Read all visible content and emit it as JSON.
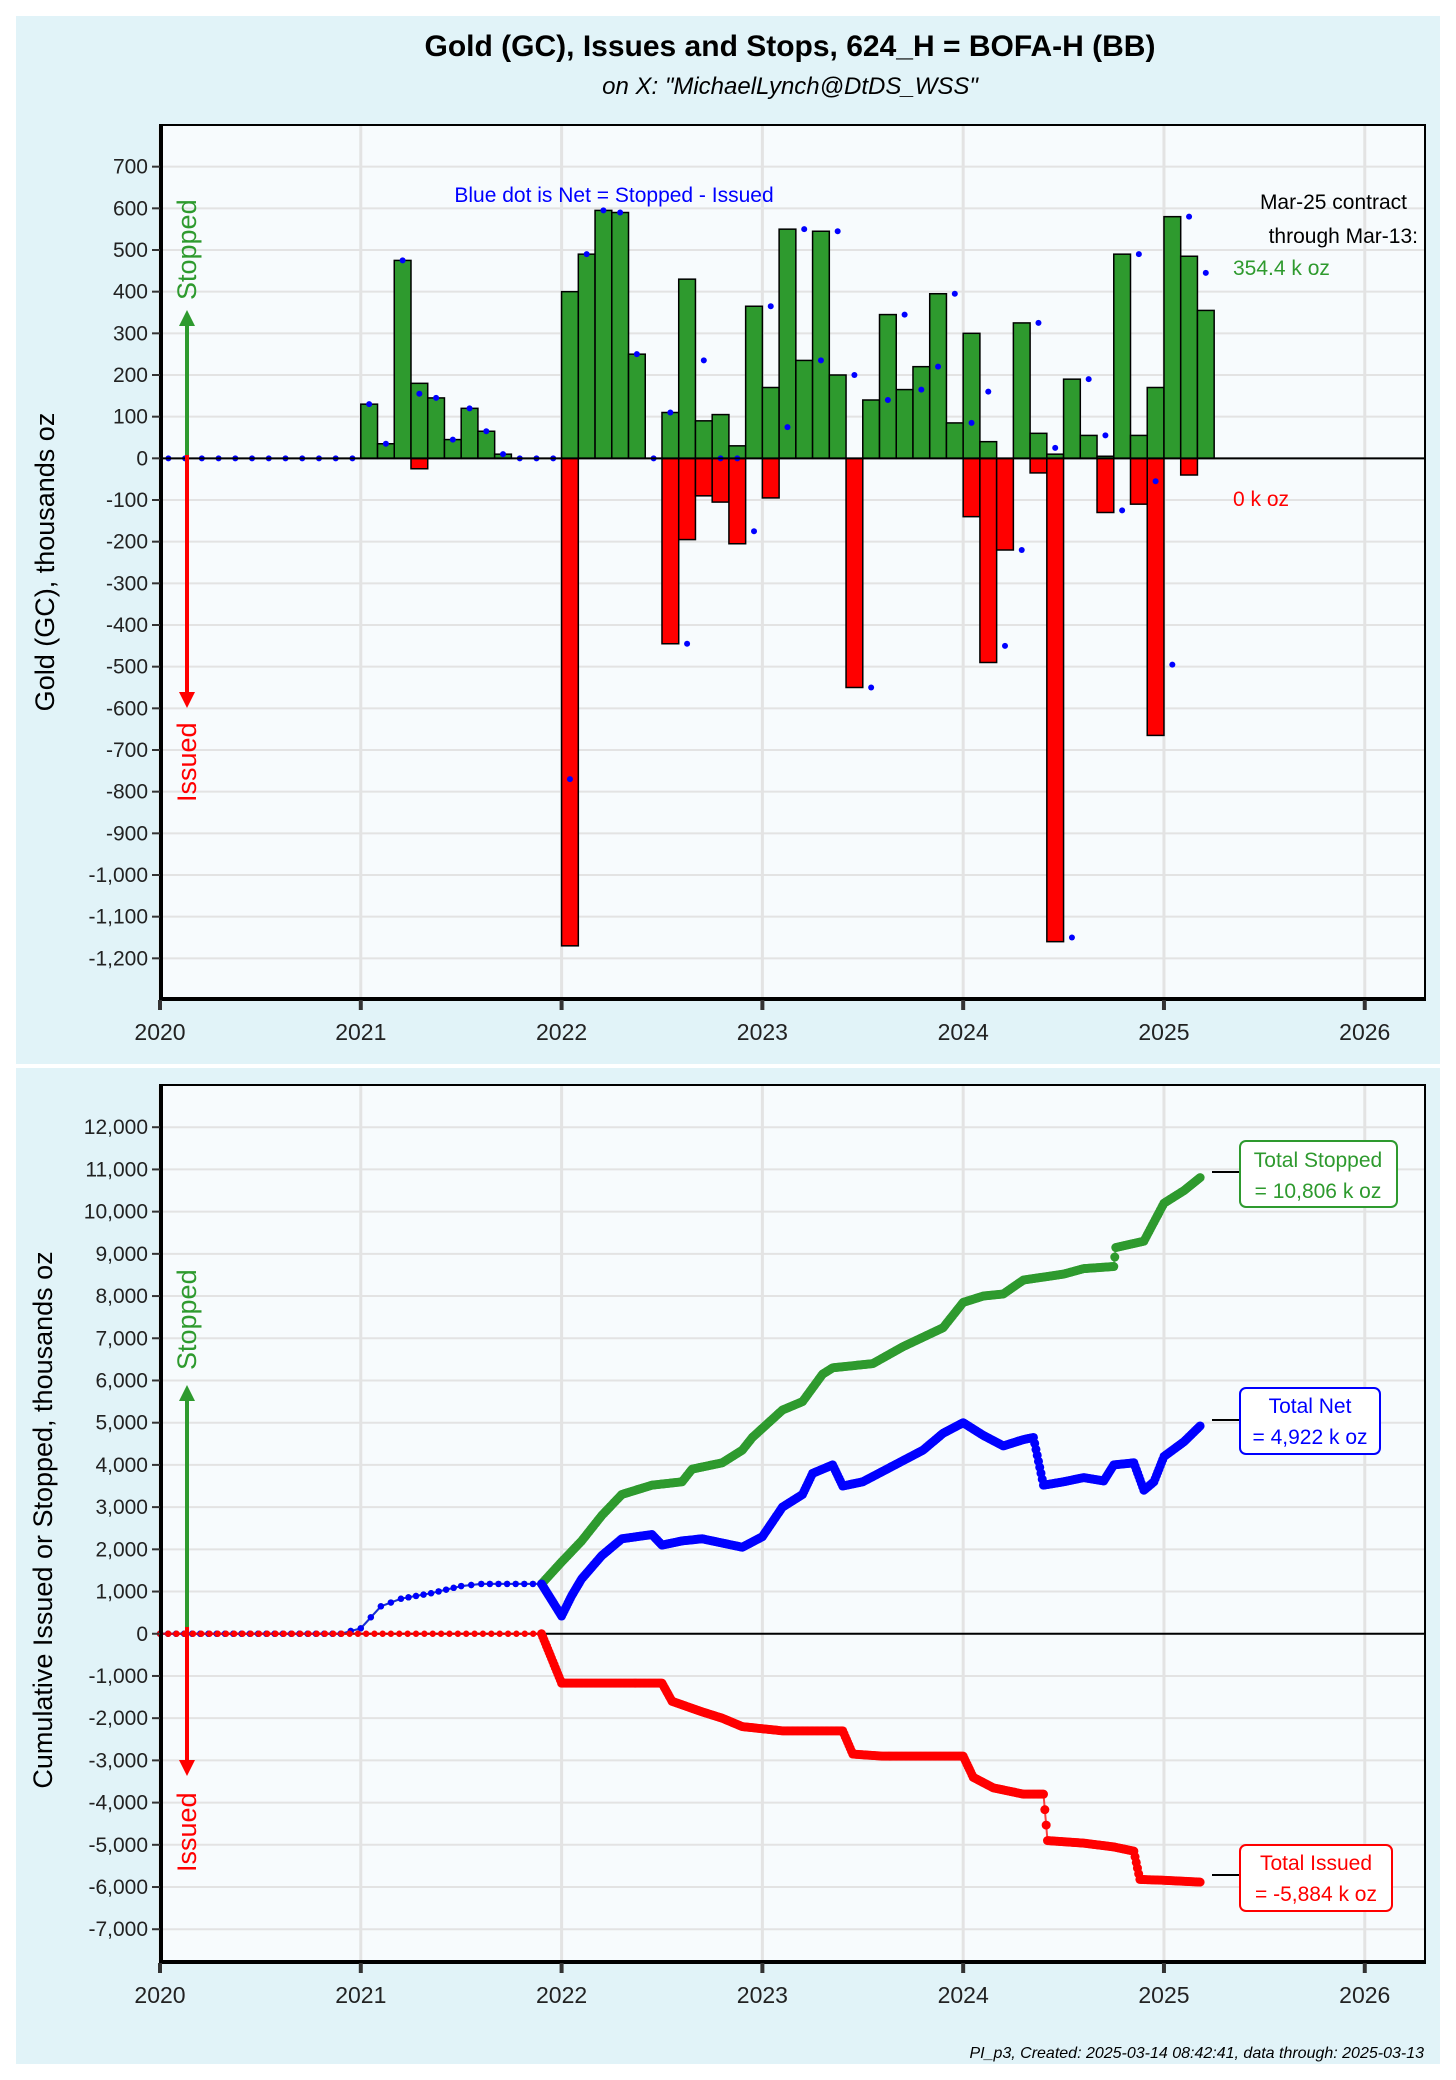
{
  "header": {
    "title": "Gold (GC), Issues and Stops, 624_H = BOFA-H (BB)",
    "subtitle": "on X:   \"MichaelLynch@DtDS_WSS\""
  },
  "footer": "PI_p3, Created: 2025-03-14 08:42:41, data through: 2025-03-13",
  "colors": {
    "panel_bg": "#e1f3f8",
    "plot_bg": "#f7fbfd",
    "stopped": "#2e9a2e",
    "issued": "#ff0000",
    "net": "#0000ff",
    "grid": "#e3e3e3"
  },
  "chart_data": [
    {
      "type": "bar",
      "title": "",
      "ylabel": "Gold (GC), thousands oz",
      "xlabel": "",
      "ylim": [
        -1300,
        800
      ],
      "xlim": [
        2020.0,
        2026.3
      ],
      "yticks": [
        700,
        600,
        500,
        400,
        300,
        200,
        100,
        0,
        -100,
        -200,
        -300,
        -400,
        -500,
        -600,
        -700,
        -800,
        -900,
        -1000,
        -1100,
        -1200
      ],
      "ytick_labels": [
        "700",
        "600",
        "500",
        "400",
        "300",
        "200",
        "100",
        "0",
        "-100",
        "-200",
        "-300",
        "-400",
        "-500",
        "-600",
        "-700",
        "-800",
        "-900",
        "-1,000",
        "-1,100",
        "-1,200"
      ],
      "xticks": [
        2020,
        2021,
        2022,
        2023,
        2024,
        2025,
        2026
      ],
      "xtick_labels": [
        "2020",
        "2021",
        "2022",
        "2023",
        "2024",
        "2025",
        "2026"
      ],
      "grid": true,
      "arrow_labels": {
        "up": "Stopped",
        "down": "Issued"
      },
      "annotations": {
        "net_note": "Blue dot is Net = Stopped - Issued",
        "contract_line1": "Mar-25 contract",
        "contract_line2": "through Mar-13:",
        "stopped_value": "354.4 k oz",
        "issued_value": "0 k oz"
      },
      "months": [
        "2020-01",
        "2020-02",
        "2020-03",
        "2020-04",
        "2020-05",
        "2020-06",
        "2020-07",
        "2020-08",
        "2020-09",
        "2020-10",
        "2020-11",
        "2020-12",
        "2021-01",
        "2021-02",
        "2021-03",
        "2021-04",
        "2021-05",
        "2021-06",
        "2021-07",
        "2021-08",
        "2021-09",
        "2021-10",
        "2021-11",
        "2021-12",
        "2022-01",
        "2022-02",
        "2022-03",
        "2022-04",
        "2022-05",
        "2022-06",
        "2022-07",
        "2022-08",
        "2022-09",
        "2022-10",
        "2022-11",
        "2022-12",
        "2023-01",
        "2023-02",
        "2023-03",
        "2023-04",
        "2023-05",
        "2023-06",
        "2023-07",
        "2023-08",
        "2023-09",
        "2023-10",
        "2023-11",
        "2023-12",
        "2024-01",
        "2024-02",
        "2024-03",
        "2024-04",
        "2024-05",
        "2024-06",
        "2024-07",
        "2024-08",
        "2024-09",
        "2024-10",
        "2024-11",
        "2024-12",
        "2025-01",
        "2025-02",
        "2025-03"
      ],
      "series": [
        {
          "name": "Stopped",
          "values": [
            0,
            0,
            0,
            0,
            0,
            0,
            0,
            0,
            0,
            0,
            0,
            0,
            130,
            35,
            475,
            180,
            145,
            45,
            120,
            65,
            10,
            0,
            0,
            0,
            400,
            490,
            595,
            590,
            250,
            0,
            110,
            430,
            90,
            105,
            30,
            365,
            170,
            550,
            235,
            545,
            200,
            0,
            140,
            345,
            165,
            220,
            395,
            85,
            300,
            40,
            0,
            325,
            60,
            10,
            190,
            55,
            5,
            490,
            55,
            170,
            580,
            485,
            355
          ]
        },
        {
          "name": "Issued",
          "values": [
            0,
            0,
            0,
            0,
            0,
            0,
            0,
            0,
            0,
            0,
            0,
            0,
            0,
            0,
            0,
            -25,
            0,
            0,
            0,
            0,
            0,
            0,
            0,
            0,
            -1170,
            0,
            0,
            0,
            0,
            0,
            -445,
            -195,
            -90,
            -105,
            -205,
            0,
            -95,
            0,
            0,
            0,
            0,
            -550,
            0,
            0,
            0,
            0,
            0,
            0,
            -140,
            -490,
            -220,
            0,
            -35,
            -1160,
            0,
            0,
            -130,
            0,
            -110,
            -665,
            0,
            -40,
            0
          ]
        },
        {
          "name": "Net",
          "values": [
            0,
            0,
            0,
            0,
            0,
            0,
            0,
            0,
            0,
            0,
            0,
            0,
            130,
            35,
            475,
            155,
            145,
            45,
            120,
            65,
            10,
            0,
            0,
            0,
            -770,
            490,
            595,
            590,
            250,
            0,
            110,
            -445,
            235,
            0,
            0,
            -175,
            365,
            75,
            550,
            235,
            545,
            200,
            -550,
            140,
            345,
            165,
            220,
            395,
            85,
            160,
            -450,
            -220,
            325,
            25,
            -1150,
            190,
            55,
            -125,
            490,
            -55,
            -495,
            580,
            445
          ]
        }
      ]
    },
    {
      "type": "line",
      "title": "",
      "ylabel": "Cumulative Issued or Stopped, thousands oz",
      "xlabel": "",
      "ylim": [
        -7800,
        13000
      ],
      "xlim": [
        2020.0,
        2026.3
      ],
      "yticks": [
        12000,
        11000,
        10000,
        9000,
        8000,
        7000,
        6000,
        5000,
        4000,
        3000,
        2000,
        1000,
        0,
        -1000,
        -2000,
        -3000,
        -4000,
        -5000,
        -6000,
        -7000
      ],
      "ytick_labels": [
        "12,000",
        "11,000",
        "10,000",
        "9,000",
        "8,000",
        "7,000",
        "6,000",
        "5,000",
        "4,000",
        "3,000",
        "2,000",
        "1,000",
        "0",
        "-1,000",
        "-2,000",
        "-3,000",
        "-4,000",
        "-5,000",
        "-6,000",
        "-7,000"
      ],
      "xticks": [
        2020,
        2021,
        2022,
        2023,
        2024,
        2025,
        2026
      ],
      "xtick_labels": [
        "2020",
        "2021",
        "2022",
        "2023",
        "2024",
        "2025",
        "2026"
      ],
      "grid": true,
      "arrow_labels": {
        "up": "Stopped",
        "down": "Issued"
      },
      "labels": {
        "stopped_line1": "Total Stopped",
        "stopped_line2": "= 10,806 k oz",
        "net_line1": "Total Net",
        "net_line2": "= 4,922 k oz",
        "issued_line1": "Total Issued",
        "issued_line2": "= -5,884 k oz"
      },
      "series": [
        {
          "name": "Stopped",
          "points": [
            [
              2020.0,
              0
            ],
            [
              2020.2,
              0
            ],
            [
              2020.9,
              0
            ],
            [
              2021.0,
              130
            ],
            [
              2021.1,
              650
            ],
            [
              2021.2,
              830
            ],
            [
              2021.35,
              960
            ],
            [
              2021.5,
              1130
            ],
            [
              2021.6,
              1180
            ],
            [
              2021.9,
              1180
            ],
            [
              2022.0,
              1700
            ],
            [
              2022.1,
              2200
            ],
            [
              2022.2,
              2800
            ],
            [
              2022.3,
              3300
            ],
            [
              2022.45,
              3520
            ],
            [
              2022.6,
              3600
            ],
            [
              2022.65,
              3900
            ],
            [
              2022.8,
              4050
            ],
            [
              2022.9,
              4350
            ],
            [
              2022.95,
              4650
            ],
            [
              2023.1,
              5300
            ],
            [
              2023.2,
              5500
            ],
            [
              2023.3,
              6150
            ],
            [
              2023.35,
              6300
            ],
            [
              2023.55,
              6400
            ],
            [
              2023.7,
              6800
            ],
            [
              2023.9,
              7250
            ],
            [
              2024.0,
              7850
            ],
            [
              2024.1,
              8000
            ],
            [
              2024.2,
              8050
            ],
            [
              2024.3,
              8380
            ],
            [
              2024.5,
              8520
            ],
            [
              2024.6,
              8650
            ],
            [
              2024.75,
              8700
            ],
            [
              2024.76,
              9150
            ],
            [
              2024.9,
              9300
            ],
            [
              2025.0,
              10200
            ],
            [
              2025.1,
              10500
            ],
            [
              2025.18,
              10806
            ]
          ]
        },
        {
          "name": "Net",
          "points": [
            [
              2020.0,
              0
            ],
            [
              2020.2,
              0
            ],
            [
              2020.9,
              0
            ],
            [
              2021.0,
              130
            ],
            [
              2021.1,
              650
            ],
            [
              2021.2,
              830
            ],
            [
              2021.35,
              960
            ],
            [
              2021.5,
              1130
            ],
            [
              2021.6,
              1180
            ],
            [
              2021.9,
              1180
            ],
            [
              2022.0,
              420
            ],
            [
              2022.05,
              900
            ],
            [
              2022.1,
              1300
            ],
            [
              2022.2,
              1850
            ],
            [
              2022.3,
              2250
            ],
            [
              2022.45,
              2350
            ],
            [
              2022.5,
              2100
            ],
            [
              2022.6,
              2200
            ],
            [
              2022.7,
              2250
            ],
            [
              2022.9,
              2050
            ],
            [
              2023.0,
              2300
            ],
            [
              2023.1,
              3000
            ],
            [
              2023.2,
              3300
            ],
            [
              2023.25,
              3800
            ],
            [
              2023.35,
              4000
            ],
            [
              2023.4,
              3500
            ],
            [
              2023.5,
              3600
            ],
            [
              2023.7,
              4100
            ],
            [
              2023.8,
              4350
            ],
            [
              2023.9,
              4750
            ],
            [
              2024.0,
              5000
            ],
            [
              2024.1,
              4700
            ],
            [
              2024.2,
              4450
            ],
            [
              2024.3,
              4600
            ],
            [
              2024.35,
              4650
            ],
            [
              2024.4,
              3520
            ],
            [
              2024.5,
              3600
            ],
            [
              2024.6,
              3700
            ],
            [
              2024.7,
              3620
            ],
            [
              2024.75,
              4000
            ],
            [
              2024.85,
              4050
            ],
            [
              2024.9,
              3400
            ],
            [
              2024.95,
              3600
            ],
            [
              2025.0,
              4200
            ],
            [
              2025.1,
              4550
            ],
            [
              2025.18,
              4922
            ]
          ]
        },
        {
          "name": "Issued",
          "points": [
            [
              2020.0,
              0
            ],
            [
              2021.15,
              0
            ],
            [
              2021.9,
              0
            ],
            [
              2022.0,
              -1170
            ],
            [
              2022.5,
              -1170
            ],
            [
              2022.55,
              -1600
            ],
            [
              2022.7,
              -1850
            ],
            [
              2022.8,
              -2000
            ],
            [
              2022.9,
              -2200
            ],
            [
              2023.0,
              -2250
            ],
            [
              2023.1,
              -2300
            ],
            [
              2023.4,
              -2300
            ],
            [
              2023.45,
              -2850
            ],
            [
              2023.6,
              -2900
            ],
            [
              2023.9,
              -2900
            ],
            [
              2024.0,
              -2900
            ],
            [
              2024.05,
              -3400
            ],
            [
              2024.15,
              -3650
            ],
            [
              2024.3,
              -3800
            ],
            [
              2024.4,
              -3800
            ],
            [
              2024.42,
              -4900
            ],
            [
              2024.6,
              -4960
            ],
            [
              2024.75,
              -5050
            ],
            [
              2024.85,
              -5150
            ],
            [
              2024.88,
              -5820
            ],
            [
              2025.0,
              -5840
            ],
            [
              2025.18,
              -5884
            ]
          ]
        }
      ]
    }
  ]
}
